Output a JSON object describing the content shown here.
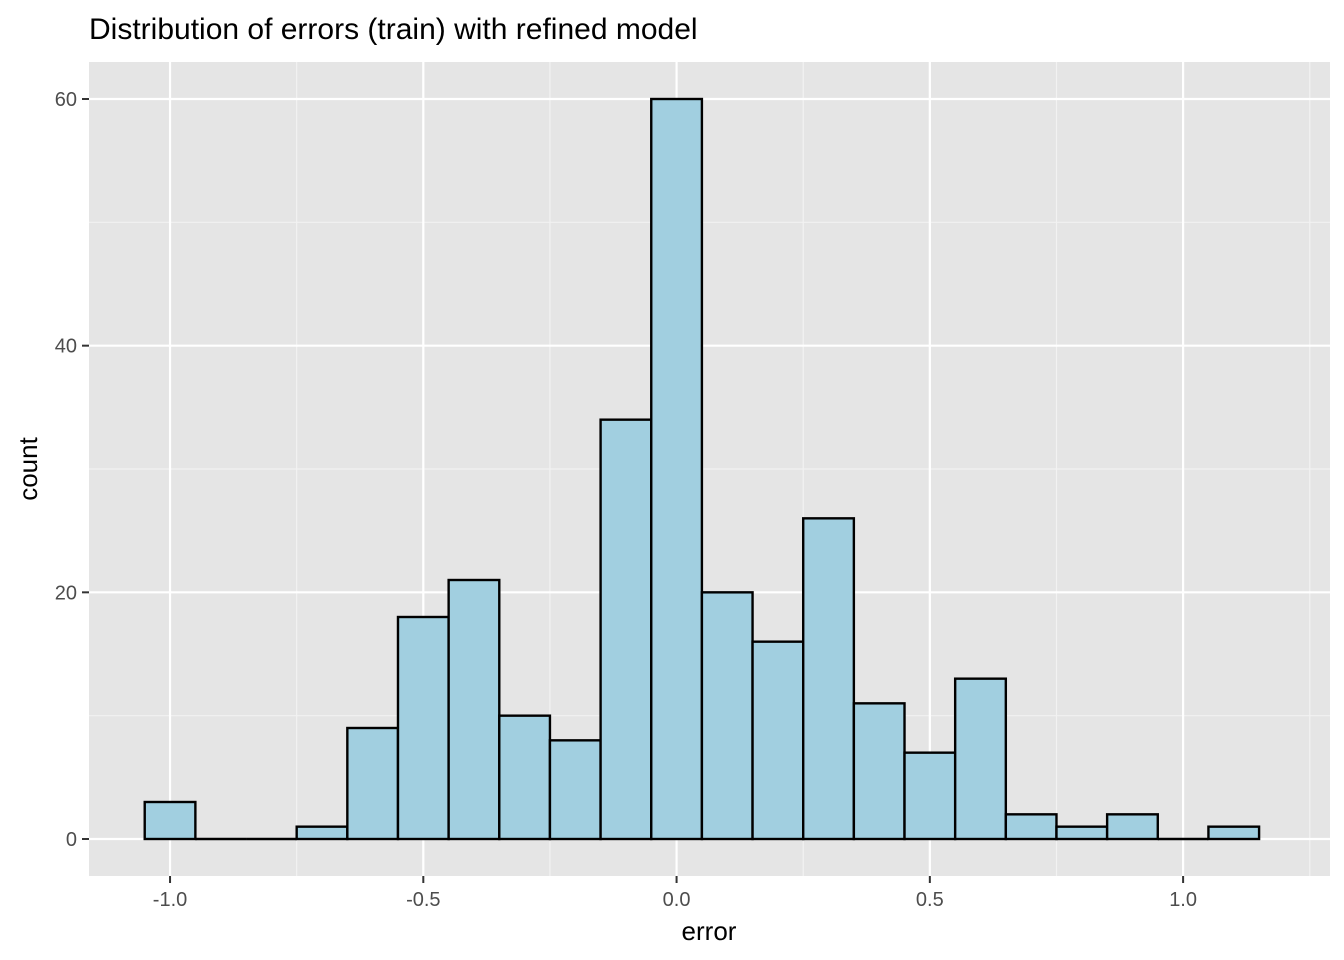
{
  "chart_data": {
    "type": "bar",
    "title": "Distribution of errors (train) with refined model",
    "xlabel": "error",
    "ylabel": "count",
    "bin_width": 0.1,
    "bins": [
      {
        "x": -1.0,
        "count": 3
      },
      {
        "x": -0.9,
        "count": 0
      },
      {
        "x": -0.8,
        "count": 0
      },
      {
        "x": -0.7,
        "count": 1
      },
      {
        "x": -0.6,
        "count": 9
      },
      {
        "x": -0.5,
        "count": 18
      },
      {
        "x": -0.4,
        "count": 21
      },
      {
        "x": -0.3,
        "count": 10
      },
      {
        "x": -0.2,
        "count": 8
      },
      {
        "x": -0.1,
        "count": 34
      },
      {
        "x": 0.0,
        "count": 60
      },
      {
        "x": 0.1,
        "count": 20
      },
      {
        "x": 0.2,
        "count": 16
      },
      {
        "x": 0.3,
        "count": 26
      },
      {
        "x": 0.4,
        "count": 11
      },
      {
        "x": 0.5,
        "count": 7
      },
      {
        "x": 0.6,
        "count": 13
      },
      {
        "x": 0.7,
        "count": 2
      },
      {
        "x": 0.8,
        "count": 1
      },
      {
        "x": 0.9,
        "count": 2
      },
      {
        "x": 1.0,
        "count": 0
      },
      {
        "x": 1.1,
        "count": 1
      }
    ],
    "xlim": [
      -1.16,
      1.29
    ],
    "ylim": [
      -3,
      63
    ],
    "x_ticks": [
      {
        "value": -1.0,
        "label": "-1.0"
      },
      {
        "value": -0.5,
        "label": "-0.5"
      },
      {
        "value": 0.0,
        "label": "0.0"
      },
      {
        "value": 0.5,
        "label": "0.5"
      },
      {
        "value": 1.0,
        "label": "1.0"
      }
    ],
    "y_ticks": [
      {
        "value": 0,
        "label": "0"
      },
      {
        "value": 20,
        "label": "20"
      },
      {
        "value": 40,
        "label": "40"
      },
      {
        "value": 60,
        "label": "60"
      }
    ],
    "grid": true,
    "colors": {
      "panel_background": "#e5e5e5",
      "grid_major": "#ffffff",
      "grid_minor": "#f2f2f2",
      "bar_fill": "#a1cfe0",
      "bar_stroke": "#000000",
      "tick_label": "#4d4d4d",
      "tick_mark": "#333333"
    }
  }
}
